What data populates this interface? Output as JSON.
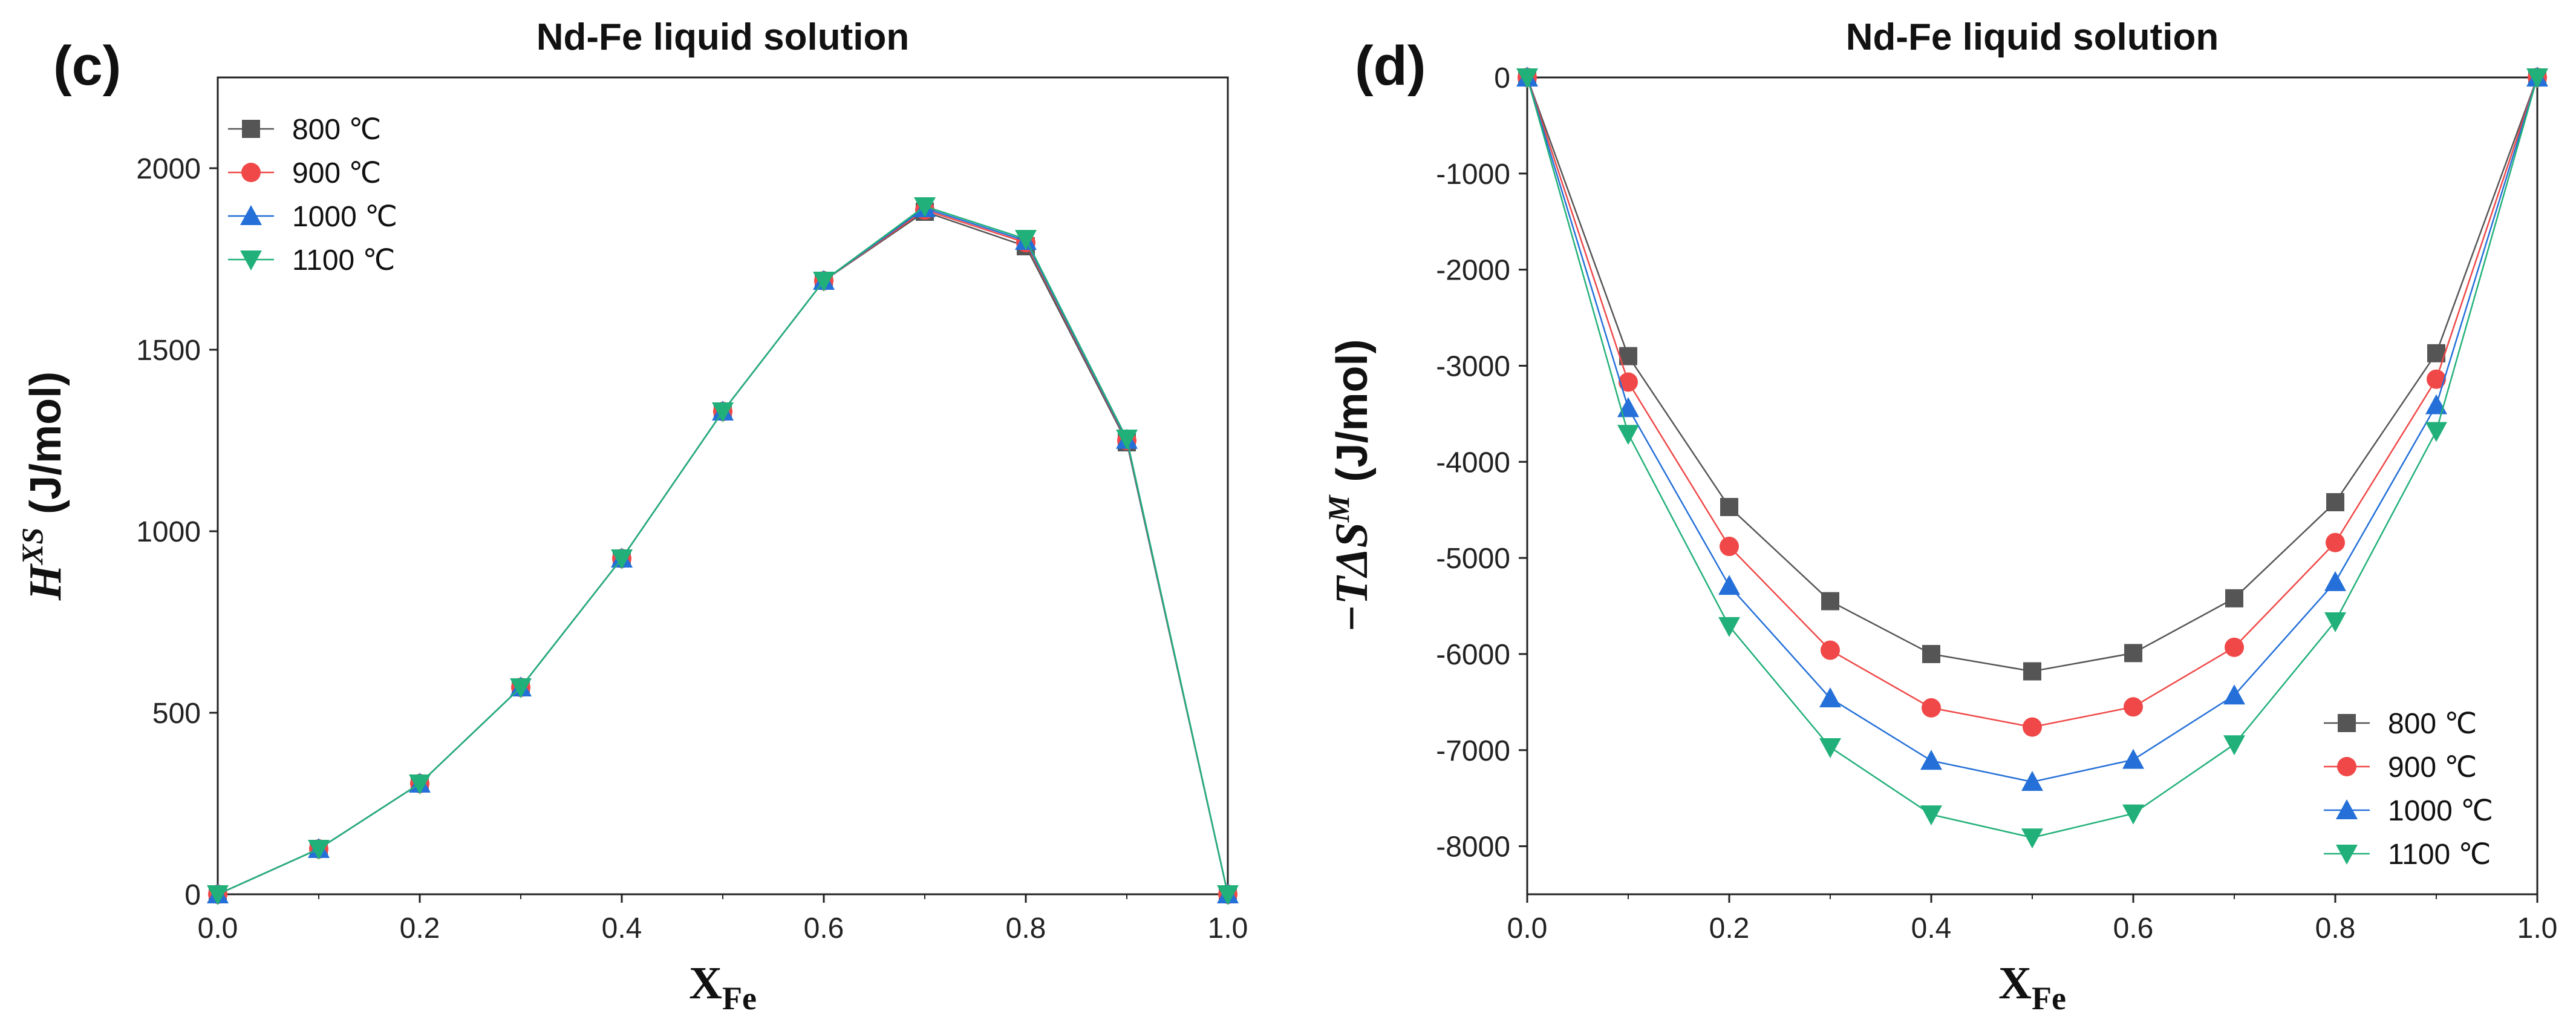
{
  "chart_data": [
    {
      "type": "line",
      "panel_label": "(c)",
      "title": "Nd-Fe liquid solution",
      "xlabel": "X_Fe",
      "xlabel_main": "X",
      "xlabel_sub": "Fe",
      "ylabel": "H^XS (J/mol)",
      "ylabel_main": "H",
      "ylabel_sup": "XS",
      "ylabel_unit": "(J/mol)",
      "xlim": [
        0,
        1
      ],
      "ylim": [
        0,
        2250
      ],
      "xticks": [
        0.0,
        0.2,
        0.4,
        0.6,
        0.8,
        1.0
      ],
      "xtick_labels": [
        "0.0",
        "0.2",
        "0.4",
        "0.6",
        "0.8",
        "1.0"
      ],
      "yticks": [
        0,
        500,
        1000,
        1500,
        2000
      ],
      "ytick_labels": [
        "0",
        "500",
        "1000",
        "1500",
        "2000"
      ],
      "grid": false,
      "legend_position": "top-left",
      "x": [
        0.0,
        0.1,
        0.2,
        0.3,
        0.4,
        0.5,
        0.6,
        0.7,
        0.8,
        0.9,
        1.0
      ],
      "series": [
        {
          "name": "800 ℃",
          "color": "#555555",
          "marker": "square",
          "values": [
            0,
            125,
            305,
            570,
            925,
            1330,
            1690,
            1880,
            1785,
            1245,
            0
          ]
        },
        {
          "name": "900 ℃",
          "color": "#f04848",
          "marker": "circle",
          "values": [
            0,
            125,
            305,
            570,
            925,
            1330,
            1690,
            1885,
            1795,
            1250,
            0
          ]
        },
        {
          "name": "1000 ℃",
          "color": "#2470d8",
          "marker": "triangle-up",
          "values": [
            0,
            125,
            305,
            570,
            925,
            1330,
            1690,
            1890,
            1800,
            1252,
            0
          ]
        },
        {
          "name": "1100 ℃",
          "color": "#22b07a",
          "marker": "triangle-down",
          "values": [
            0,
            125,
            305,
            570,
            925,
            1330,
            1690,
            1895,
            1805,
            1255,
            0
          ]
        }
      ]
    },
    {
      "type": "line",
      "panel_label": "(d)",
      "title": "Nd-Fe liquid solution",
      "xlabel": "X_Fe",
      "xlabel_main": "X",
      "xlabel_sub": "Fe",
      "ylabel": "−TΔS^M (J/mol)",
      "ylabel_main": "−TΔS",
      "ylabel_sup": "M",
      "ylabel_unit": "(J/mol)",
      "xlim": [
        0,
        1
      ],
      "ylim": [
        -8500,
        0
      ],
      "xticks": [
        0.0,
        0.2,
        0.4,
        0.6,
        0.8,
        1.0
      ],
      "xtick_labels": [
        "0.0",
        "0.2",
        "0.4",
        "0.6",
        "0.8",
        "1.0"
      ],
      "yticks": [
        0,
        -1000,
        -2000,
        -3000,
        -4000,
        -5000,
        -6000,
        -7000,
        -8000
      ],
      "ytick_labels": [
        "0",
        "-1000",
        "-2000",
        "-3000",
        "-4000",
        "-5000",
        "-6000",
        "-7000",
        "-8000"
      ],
      "grid": false,
      "legend_position": "bottom-right",
      "x": [
        0.0,
        0.1,
        0.2,
        0.3,
        0.4,
        0.5,
        0.6,
        0.7,
        0.8,
        0.9,
        1.0
      ],
      "series": [
        {
          "name": "800 ℃",
          "color": "#555555",
          "marker": "square",
          "values": [
            0,
            -2900,
            -4470,
            -5450,
            -6000,
            -6180,
            -5990,
            -5420,
            -4420,
            -2870,
            0
          ]
        },
        {
          "name": "900 ℃",
          "color": "#f04848",
          "marker": "circle",
          "values": [
            0,
            -3170,
            -4880,
            -5960,
            -6560,
            -6760,
            -6550,
            -5930,
            -4840,
            -3140,
            0
          ]
        },
        {
          "name": "1000 ℃",
          "color": "#2470d8",
          "marker": "triangle-up",
          "values": [
            0,
            -3440,
            -5290,
            -6460,
            -7110,
            -7330,
            -7100,
            -6430,
            -5250,
            -3410,
            0
          ]
        },
        {
          "name": "1100 ℃",
          "color": "#22b07a",
          "marker": "triangle-down",
          "values": [
            0,
            -3710,
            -5710,
            -6970,
            -7670,
            -7910,
            -7660,
            -6940,
            -5660,
            -3680,
            0
          ]
        }
      ]
    }
  ]
}
